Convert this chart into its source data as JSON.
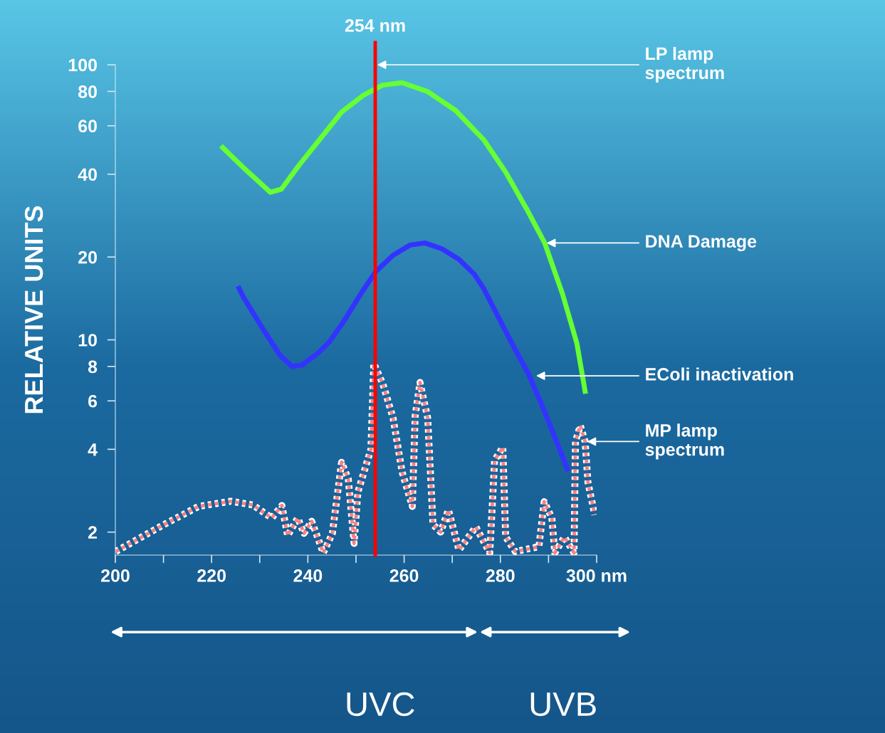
{
  "chart_data": {
    "type": "line",
    "ylabel": "RELATIVE UNITS",
    "log": "y",
    "grid": false,
    "marker": "none",
    "xlim": [
      200,
      300
    ],
    "xticks": [
      200,
      {
        "value": 210,
        "label": null
      },
      220,
      {
        "value": 230,
        "label": null
      },
      240,
      {
        "value": 250,
        "label": null
      },
      260,
      {
        "value": 270,
        "label": null
      },
      280,
      {
        "value": 290,
        "label": null
      },
      {
        "value": 300,
        "label": "300 nm"
      }
    ],
    "ylim": [
      1.65,
      100
    ],
    "yticks": [
      2,
      4,
      6,
      8,
      10,
      20,
      40,
      60,
      80,
      100
    ],
    "series": [
      {
        "color": "#66ff33",
        "line_style": "solid",
        "x": [
          222.3,
          227.1,
          232.2,
          234.5,
          238.2,
          242.6,
          247.0,
          251.5,
          255.5,
          259.6,
          264.8,
          270.7,
          276.6,
          281.1,
          285.5,
          289.2,
          292.9,
          295.9,
          297.6
        ],
        "values": [
          50,
          41.5,
          34.4,
          35.3,
          43.2,
          53.9,
          67.3,
          77.4,
          84.3,
          86,
          80,
          68.2,
          53.2,
          40.7,
          29.8,
          22.5,
          14.7,
          9.7,
          6.5
        ]
      },
      {
        "color": "#3333ff",
        "line_style": "solid",
        "x": [
          225.7,
          226.5,
          230.6,
          234.2,
          236.7,
          238.8,
          242.3,
          244.4,
          247.5,
          251.0,
          254.1,
          257.7,
          261.2,
          264.3,
          267.9,
          271.4,
          274.6,
          276.5,
          280.0,
          283.1,
          285.7,
          288.8,
          293.9
        ],
        "values": [
          15.4,
          14.4,
          11.0,
          8.8,
          8.0,
          8.1,
          9.0,
          9.8,
          11.7,
          14.7,
          17.7,
          20.3,
          22.1,
          22.5,
          21.4,
          19.6,
          17.3,
          15.4,
          11.7,
          9.2,
          7.6,
          5.7,
          3.4
        ]
      },
      {
        "color": "#ff7f7f",
        "line_style": "dotted",
        "x": [
          200.1,
          210.1,
          217.3,
          224.0,
          228.6,
          232.5,
          234.6,
          235.8,
          237.9,
          239.2,
          240.8,
          243.2,
          245.1,
          247.0,
          248.4,
          249.6,
          250.4,
          253.1,
          253.7,
          255.6,
          257.7,
          259.6,
          261.7,
          262.3,
          263.3,
          264.9,
          266.0,
          267.6,
          269.2,
          271.4,
          274.9,
          277.8,
          278.8,
          280.5,
          281.1,
          283.1,
          288.0,
          289.1,
          290.7,
          291.3,
          293.3,
          295.3,
          295.6,
          296.6,
          297.6,
          298.2,
          299.6
        ],
        "values": [
          1.7,
          2.13,
          2.48,
          2.59,
          2.51,
          2.25,
          2.5,
          1.94,
          2.25,
          1.98,
          2.19,
          1.68,
          1.98,
          3.59,
          3.12,
          1.82,
          2.8,
          4.0,
          8.2,
          6.9,
          5.2,
          3.3,
          2.48,
          5.3,
          7.0,
          5.2,
          2.13,
          2.0,
          2.41,
          1.72,
          2.09,
          1.68,
          3.65,
          4.07,
          1.92,
          1.7,
          1.77,
          2.58,
          2.25,
          1.68,
          1.92,
          1.68,
          4.27,
          4.88,
          4.27,
          3.03,
          2.31
        ]
      }
    ],
    "ref_lines": [
      {
        "axis": "x",
        "value": 254,
        "label": "254 nm",
        "color": "#ff0000",
        "line_style": "solid"
      }
    ],
    "annotations": [
      {
        "text": "LP lamp\nspectrum",
        "x": 254,
        "y": 100
      },
      {
        "text": "DNA Damage",
        "x": 289.2,
        "y": 22.5
      },
      {
        "text": "EColi inactivation",
        "x": 287,
        "y": 7.4
      },
      {
        "text": "MP lamp\nspectrum",
        "x": 297.6,
        "y": 4.27
      },
      "UVC",
      "UVB"
    ]
  }
}
